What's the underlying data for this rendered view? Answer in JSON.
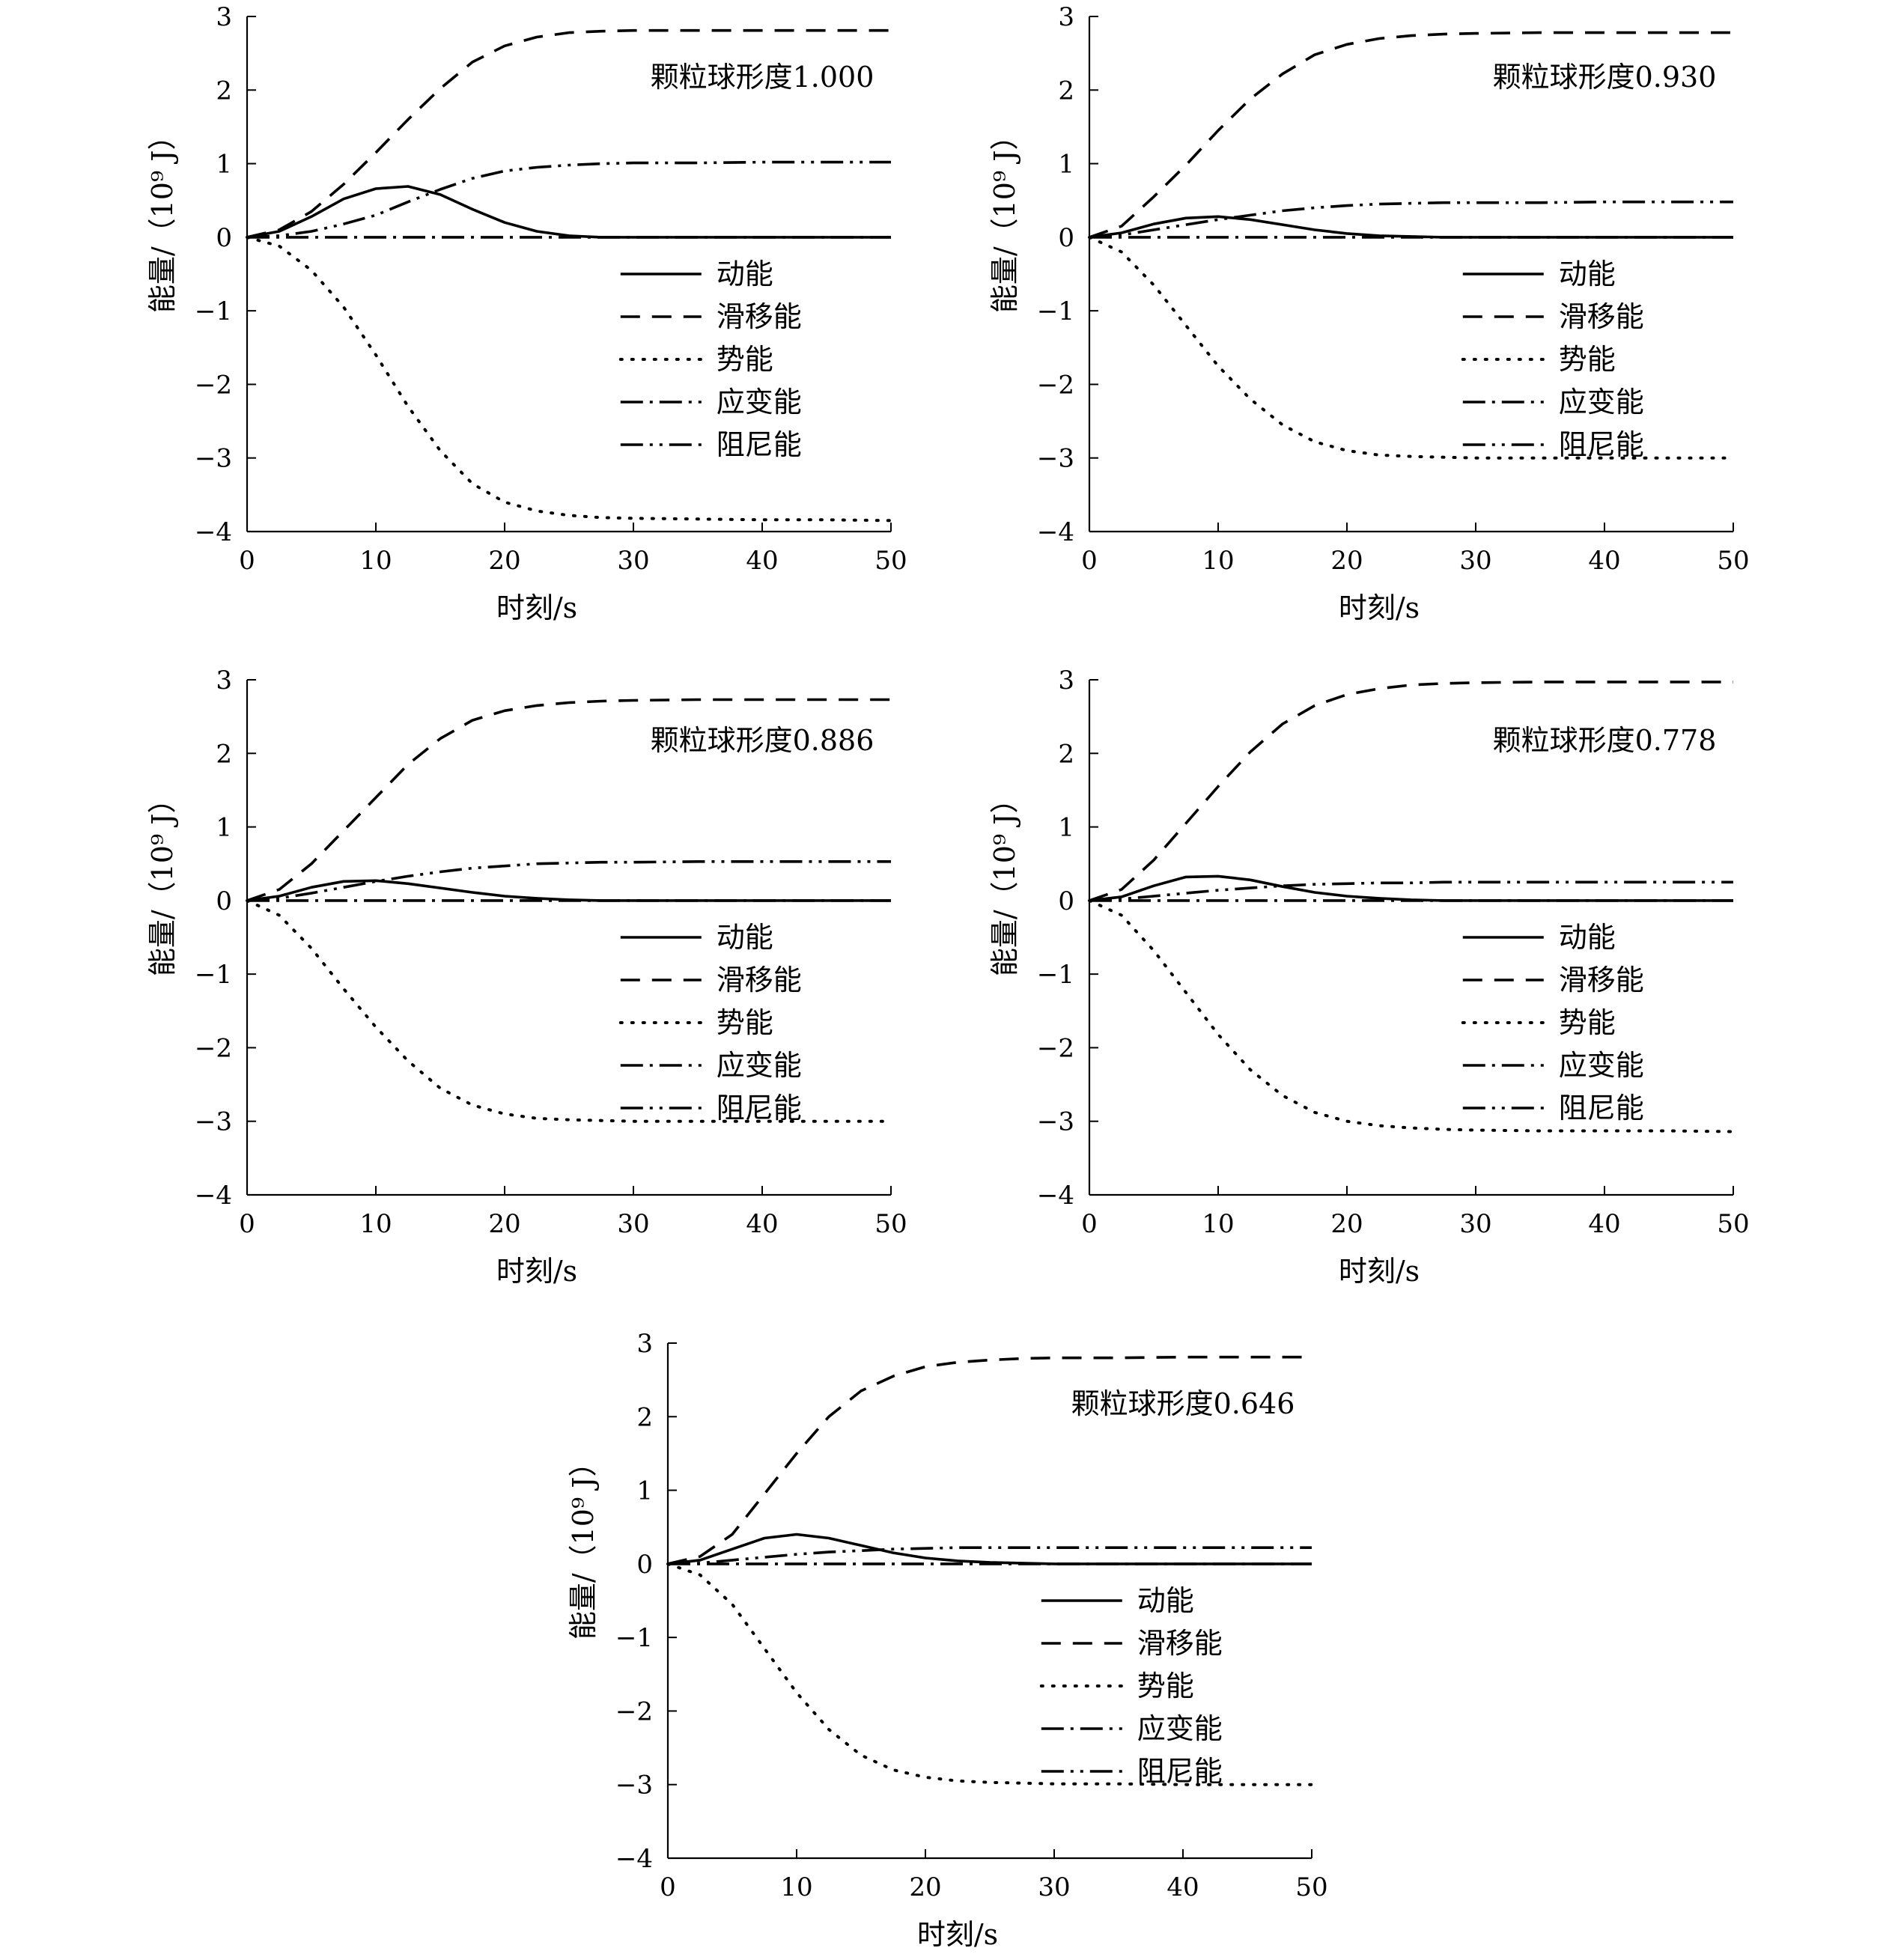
{
  "chart_data": [
    {
      "type": "line",
      "annotation": "颗粒球形度1.000",
      "xlabel": "时刻/s",
      "ylabel": "能量/（10⁹ J）",
      "xlim": [
        0,
        50
      ],
      "ylim": [
        -4,
        3
      ],
      "xticks": [
        0,
        10,
        20,
        30,
        40,
        50
      ],
      "yticks": [
        3,
        2,
        1,
        0,
        -1,
        -2,
        -3,
        -4
      ],
      "legend_placement": "center-right",
      "x": [
        0,
        2.5,
        5,
        7.5,
        10,
        12.5,
        15,
        17.5,
        20,
        22.5,
        25,
        27.5,
        30,
        35,
        40,
        45,
        50
      ],
      "series": [
        {
          "name": "动能",
          "values": [
            0,
            0.08,
            0.28,
            0.52,
            0.66,
            0.69,
            0.58,
            0.38,
            0.2,
            0.08,
            0.02,
            0,
            0,
            0,
            0,
            0,
            0
          ]
        },
        {
          "name": "滑移能",
          "values": [
            0,
            0.1,
            0.35,
            0.72,
            1.15,
            1.6,
            2.02,
            2.38,
            2.6,
            2.72,
            2.78,
            2.8,
            2.81,
            2.81,
            2.81,
            2.81,
            2.81
          ]
        },
        {
          "name": "势能",
          "values": [
            0,
            -0.12,
            -0.45,
            -0.95,
            -1.6,
            -2.3,
            -2.9,
            -3.35,
            -3.6,
            -3.72,
            -3.78,
            -3.81,
            -3.82,
            -3.83,
            -3.84,
            -3.84,
            -3.85
          ]
        },
        {
          "name": "应变能",
          "values": [
            0,
            0,
            0,
            0,
            0,
            0,
            0,
            0,
            0,
            0,
            0,
            0,
            0,
            0,
            0,
            0,
            0
          ]
        },
        {
          "name": "阻尼能",
          "values": [
            0,
            0.02,
            0.08,
            0.18,
            0.3,
            0.48,
            0.65,
            0.8,
            0.9,
            0.95,
            0.98,
            1.0,
            1.01,
            1.01,
            1.02,
            1.02,
            1.02
          ]
        }
      ]
    },
    {
      "type": "line",
      "annotation": "颗粒球形度0.930",
      "xlabel": "时刻/s",
      "ylabel": "能量/（10⁹ J）",
      "xlim": [
        0,
        50
      ],
      "ylim": [
        -4,
        3
      ],
      "xticks": [
        0,
        10,
        20,
        30,
        40,
        50
      ],
      "yticks": [
        3,
        2,
        1,
        0,
        -1,
        -2,
        -3,
        -4
      ],
      "legend_placement": "center-right",
      "x": [
        0,
        2.5,
        5,
        7.5,
        10,
        12.5,
        15,
        17.5,
        20,
        22.5,
        25,
        27.5,
        30,
        35,
        40,
        45,
        50
      ],
      "series": [
        {
          "name": "动能",
          "values": [
            0,
            0.06,
            0.18,
            0.26,
            0.28,
            0.24,
            0.17,
            0.1,
            0.05,
            0.02,
            0.01,
            0,
            0,
            0,
            0,
            0,
            0
          ]
        },
        {
          "name": "滑移能",
          "values": [
            0,
            0.15,
            0.55,
            0.98,
            1.45,
            1.88,
            2.22,
            2.48,
            2.62,
            2.7,
            2.74,
            2.76,
            2.77,
            2.78,
            2.78,
            2.78,
            2.78
          ]
        },
        {
          "name": "势能",
          "values": [
            0,
            -0.2,
            -0.65,
            -1.2,
            -1.75,
            -2.2,
            -2.55,
            -2.78,
            -2.9,
            -2.96,
            -2.98,
            -2.99,
            -3.0,
            -3.0,
            -3.0,
            -3.0,
            -3.0
          ]
        },
        {
          "name": "应变能",
          "values": [
            0,
            0,
            0,
            0,
            0,
            0,
            0,
            0,
            0,
            0,
            0,
            0,
            0,
            0,
            0,
            0,
            0
          ]
        },
        {
          "name": "阻尼能",
          "values": [
            0,
            0.03,
            0.1,
            0.17,
            0.24,
            0.3,
            0.36,
            0.4,
            0.43,
            0.45,
            0.46,
            0.47,
            0.47,
            0.47,
            0.48,
            0.48,
            0.48
          ]
        }
      ]
    },
    {
      "type": "line",
      "annotation": "颗粒球形度0.886",
      "xlabel": "时刻/s",
      "ylabel": "能量/（10⁹ J）",
      "xlim": [
        0,
        50
      ],
      "ylim": [
        -4,
        3
      ],
      "xticks": [
        0,
        10,
        20,
        30,
        40,
        50
      ],
      "yticks": [
        3,
        2,
        1,
        0,
        -1,
        -2,
        -3,
        -4
      ],
      "legend_placement": "center-right",
      "x": [
        0,
        2.5,
        5,
        7.5,
        10,
        12.5,
        15,
        17.5,
        20,
        22.5,
        25,
        27.5,
        30,
        35,
        40,
        45,
        50
      ],
      "series": [
        {
          "name": "动能",
          "values": [
            0,
            0.06,
            0.18,
            0.26,
            0.27,
            0.23,
            0.17,
            0.11,
            0.06,
            0.03,
            0.01,
            0,
            0,
            0,
            0,
            0,
            0
          ]
        },
        {
          "name": "滑移能",
          "values": [
            0,
            0.15,
            0.5,
            0.95,
            1.4,
            1.85,
            2.2,
            2.45,
            2.58,
            2.65,
            2.69,
            2.71,
            2.72,
            2.73,
            2.73,
            2.73,
            2.73
          ]
        },
        {
          "name": "势能",
          "values": [
            0,
            -0.2,
            -0.65,
            -1.2,
            -1.72,
            -2.18,
            -2.55,
            -2.78,
            -2.9,
            -2.96,
            -2.98,
            -2.99,
            -3.0,
            -3.0,
            -3.0,
            -3.0,
            -3.0
          ]
        },
        {
          "name": "应变能",
          "values": [
            0,
            0,
            0,
            0,
            0,
            0,
            0,
            0,
            0,
            0,
            0,
            0,
            0,
            0,
            0,
            0,
            0
          ]
        },
        {
          "name": "阻尼能",
          "values": [
            0,
            0.03,
            0.1,
            0.18,
            0.26,
            0.33,
            0.39,
            0.44,
            0.47,
            0.5,
            0.51,
            0.52,
            0.52,
            0.53,
            0.53,
            0.53,
            0.53
          ]
        }
      ]
    },
    {
      "type": "line",
      "annotation": "颗粒球形度0.778",
      "xlabel": "时刻/s",
      "ylabel": "能量/（10⁹ J）",
      "xlim": [
        0,
        50
      ],
      "ylim": [
        -4,
        3
      ],
      "xticks": [
        0,
        10,
        20,
        30,
        40,
        50
      ],
      "yticks": [
        3,
        2,
        1,
        0,
        -1,
        -2,
        -3,
        -4
      ],
      "legend_placement": "center-right",
      "x": [
        0,
        2.5,
        5,
        7.5,
        10,
        12.5,
        15,
        17.5,
        20,
        22.5,
        25,
        27.5,
        30,
        35,
        40,
        45,
        50
      ],
      "series": [
        {
          "name": "动能",
          "values": [
            0,
            0.05,
            0.2,
            0.32,
            0.33,
            0.28,
            0.19,
            0.11,
            0.06,
            0.03,
            0.01,
            0,
            0,
            0,
            0,
            0,
            0
          ]
        },
        {
          "name": "滑移能",
          "values": [
            0,
            0.15,
            0.55,
            1.05,
            1.55,
            2.02,
            2.4,
            2.65,
            2.8,
            2.88,
            2.93,
            2.95,
            2.96,
            2.97,
            2.97,
            2.97,
            2.97
          ]
        },
        {
          "name": "势能",
          "values": [
            0,
            -0.2,
            -0.68,
            -1.25,
            -1.82,
            -2.3,
            -2.65,
            -2.88,
            -3.0,
            -3.06,
            -3.09,
            -3.11,
            -3.12,
            -3.13,
            -3.13,
            -3.13,
            -3.14
          ]
        },
        {
          "name": "应变能",
          "values": [
            0,
            0,
            0,
            0,
            0,
            0,
            0,
            0,
            0,
            0,
            0,
            0,
            0,
            0,
            0,
            0,
            0
          ]
        },
        {
          "name": "阻尼能",
          "values": [
            0,
            0.02,
            0.06,
            0.1,
            0.14,
            0.17,
            0.2,
            0.22,
            0.23,
            0.24,
            0.24,
            0.25,
            0.25,
            0.25,
            0.25,
            0.25,
            0.25
          ]
        }
      ]
    },
    {
      "type": "line",
      "annotation": "颗粒球形度0.646",
      "xlabel": "时刻/s",
      "ylabel": "能量/（10⁹ J）",
      "xlim": [
        0,
        50
      ],
      "ylim": [
        -4,
        3
      ],
      "xticks": [
        0,
        10,
        20,
        30,
        40,
        50
      ],
      "yticks": [
        3,
        2,
        1,
        0,
        -1,
        -2,
        -3,
        -4
      ],
      "legend_placement": "center-right",
      "x": [
        0,
        2.5,
        5,
        7.5,
        10,
        12.5,
        15,
        17.5,
        20,
        22.5,
        25,
        27.5,
        30,
        35,
        40,
        45,
        50
      ],
      "series": [
        {
          "name": "动能",
          "values": [
            0,
            0.05,
            0.2,
            0.35,
            0.4,
            0.35,
            0.25,
            0.15,
            0.08,
            0.04,
            0.02,
            0.01,
            0,
            0,
            0,
            0,
            0
          ]
        },
        {
          "name": "滑移能",
          "values": [
            0,
            0.1,
            0.4,
            0.95,
            1.5,
            2.0,
            2.35,
            2.55,
            2.68,
            2.74,
            2.77,
            2.79,
            2.8,
            2.8,
            2.81,
            2.81,
            2.81
          ]
        },
        {
          "name": "势能",
          "values": [
            0,
            -0.15,
            -0.55,
            -1.15,
            -1.75,
            -2.25,
            -2.6,
            -2.8,
            -2.9,
            -2.95,
            -2.97,
            -2.98,
            -2.99,
            -2.99,
            -3.0,
            -3.0,
            -3.0
          ]
        },
        {
          "name": "应变能",
          "values": [
            0,
            0,
            0,
            0,
            0,
            0,
            0,
            0,
            0,
            0,
            0,
            0,
            0,
            0,
            0,
            0,
            0
          ]
        },
        {
          "name": "阻尼能",
          "values": [
            0,
            0.01,
            0.05,
            0.09,
            0.13,
            0.16,
            0.18,
            0.2,
            0.21,
            0.22,
            0.22,
            0.22,
            0.22,
            0.22,
            0.22,
            0.22,
            0.22
          ]
        }
      ]
    }
  ]
}
